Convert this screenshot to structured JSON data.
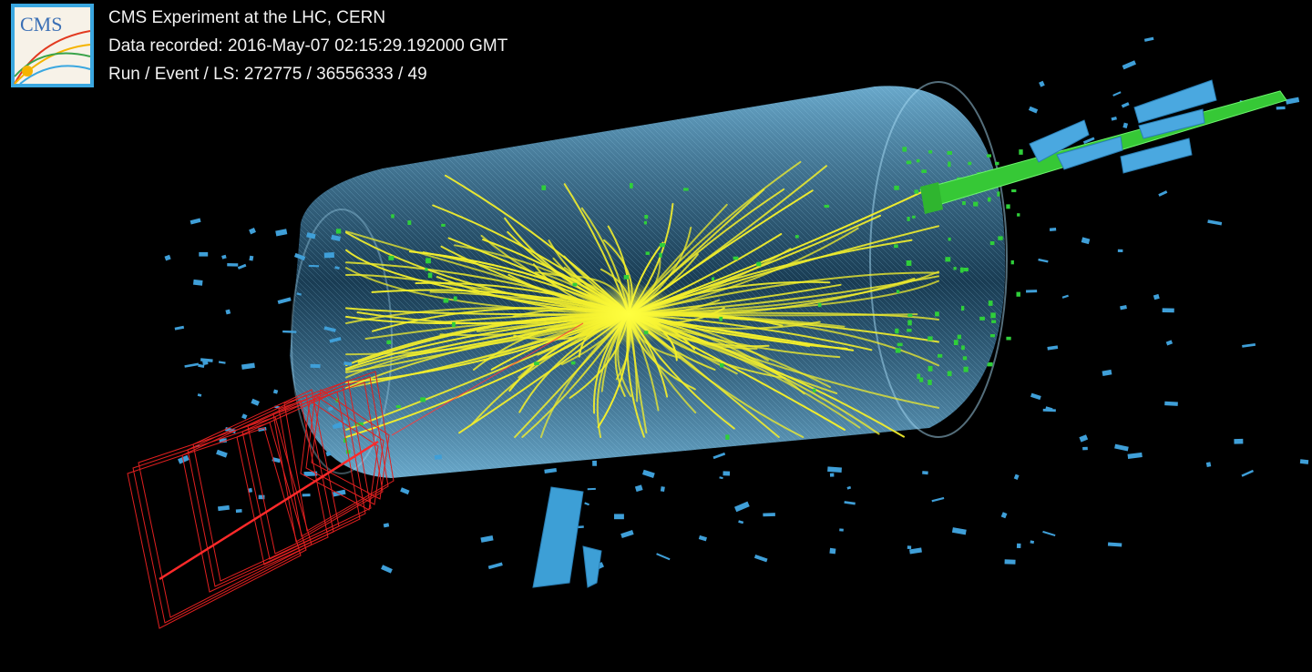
{
  "header": {
    "title": "CMS Experiment at the LHC, CERN",
    "recorded": "Data recorded: 2016-May-07 02:15:29.192000 GMT",
    "run_event": "Run / Event / LS: 272775 / 36556333 / 49"
  },
  "logo": {
    "text": "CMS",
    "icon": "cms-logo"
  },
  "colors": {
    "background": "#000000",
    "detector": "#6ab8e8",
    "tracks": "#f2ee2c",
    "calo_deposits": "#3f9fd8",
    "muon_chambers": "#e02020",
    "hits": "#2fcf3a",
    "jet": "#3ad23a"
  }
}
